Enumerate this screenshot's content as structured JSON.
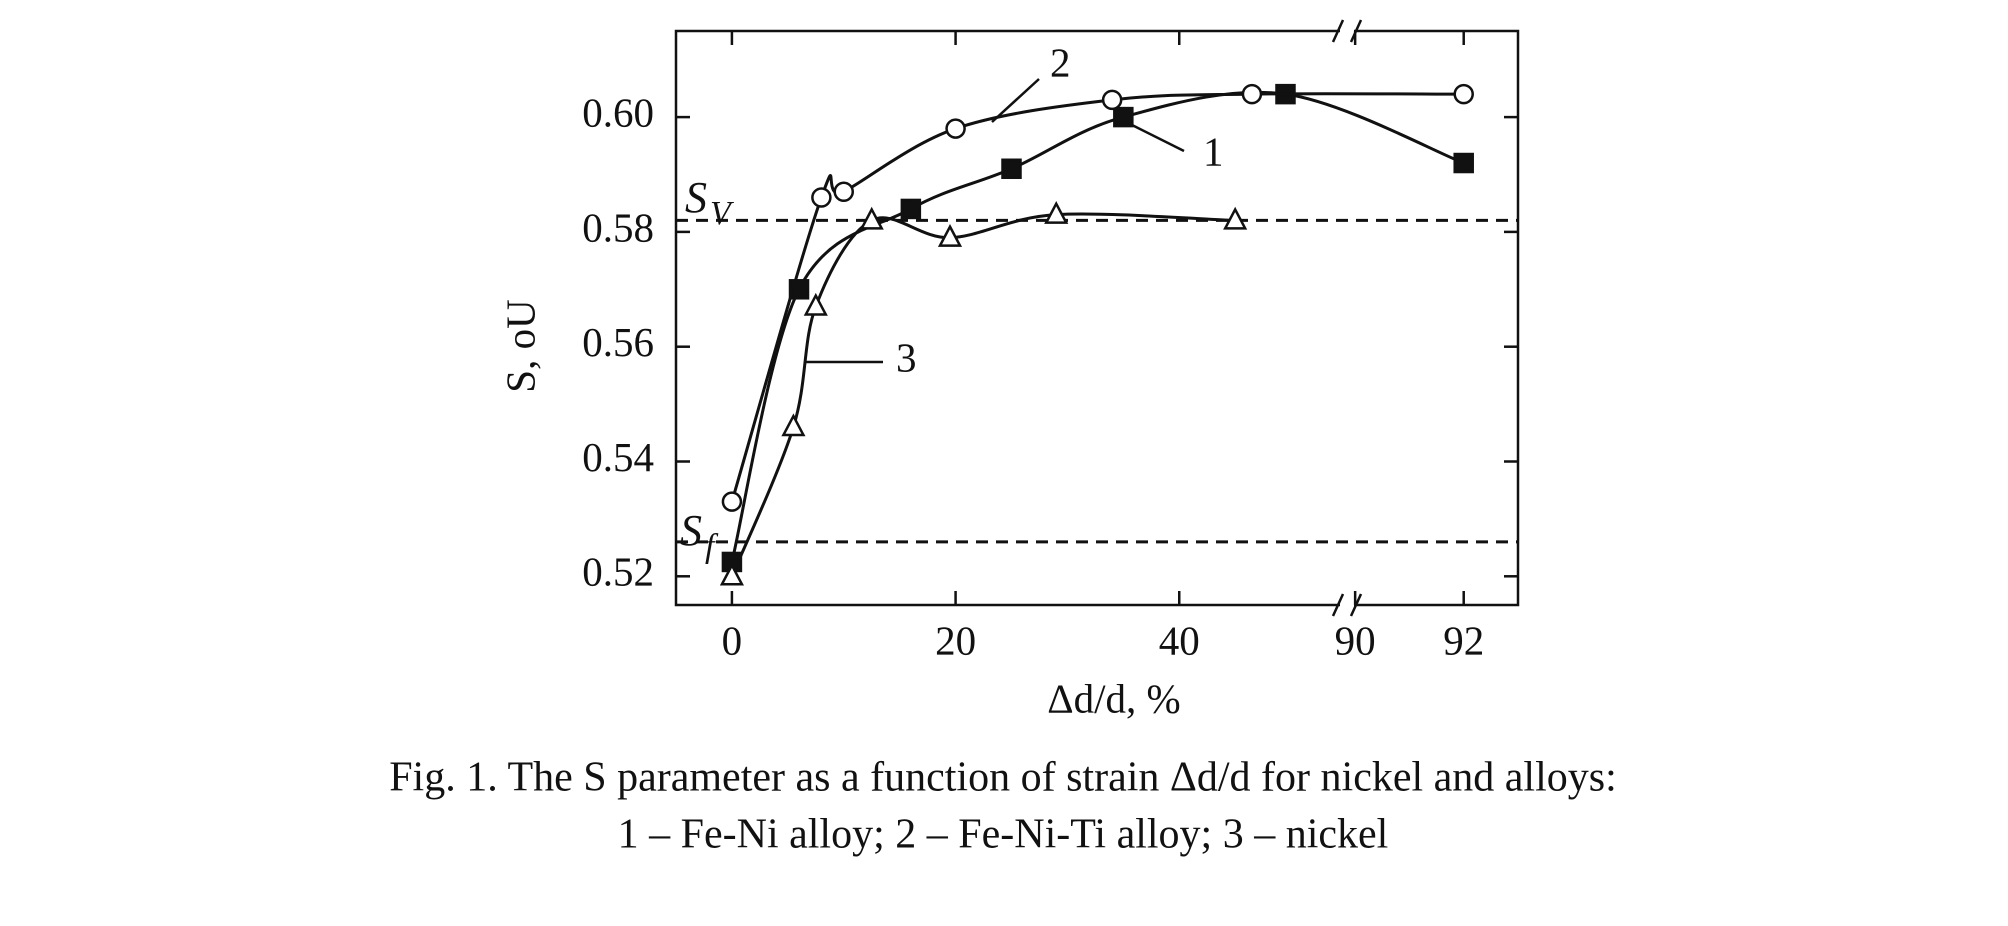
{
  "chart_data": {
    "type": "line",
    "y_label": "S, oU",
    "x_label": "Δd/d, %",
    "caption": [
      "Fig. 1. The S parameter as a function of strain Δd/d for nickel and alloys:",
      "1 – Fe-Ni alloy; 2 – Fe-Ni-Ti alloy; 3 – nickel"
    ],
    "ylim": [
      0.515,
      0.615
    ],
    "yticks": [
      0.52,
      0.54,
      0.56,
      0.58,
      {
        "value": 0.6,
        "label": "0.60"
      }
    ],
    "x_segments": [
      {
        "xlim": [
          -5,
          55
        ],
        "xticks": [
          0,
          20,
          40
        ]
      },
      {
        "xlim": [
          89.85,
          93
        ],
        "xticks": [
          90,
          92
        ]
      }
    ],
    "reference_lines": [
      {
        "value": 0.582,
        "label": "S",
        "subscript": "V"
      },
      {
        "value": 0.526,
        "label": "S",
        "subscript": "f"
      }
    ],
    "series": [
      {
        "name": "1",
        "marker": "square",
        "color": "#111111",
        "x": [
          0,
          6,
          16,
          25,
          35,
          49.5,
          92
        ],
        "values": [
          0.5225,
          0.57,
          0.584,
          0.591,
          0.6,
          0.604,
          0.592
        ]
      },
      {
        "name": "2",
        "marker": "circle",
        "color": "#111111",
        "x": [
          0,
          8,
          10,
          20,
          34,
          46.5,
          92
        ],
        "values": [
          0.533,
          0.586,
          0.587,
          0.598,
          0.603,
          0.604,
          0.604
        ]
      },
      {
        "name": "3",
        "marker": "triangle",
        "color": "#111111",
        "x": [
          0,
          5.5,
          7.5,
          12.5,
          19.5,
          29,
          45
        ],
        "values": [
          0.52,
          0.546,
          0.567,
          0.582,
          0.579,
          0.583,
          0.582
        ]
      }
    ]
  }
}
